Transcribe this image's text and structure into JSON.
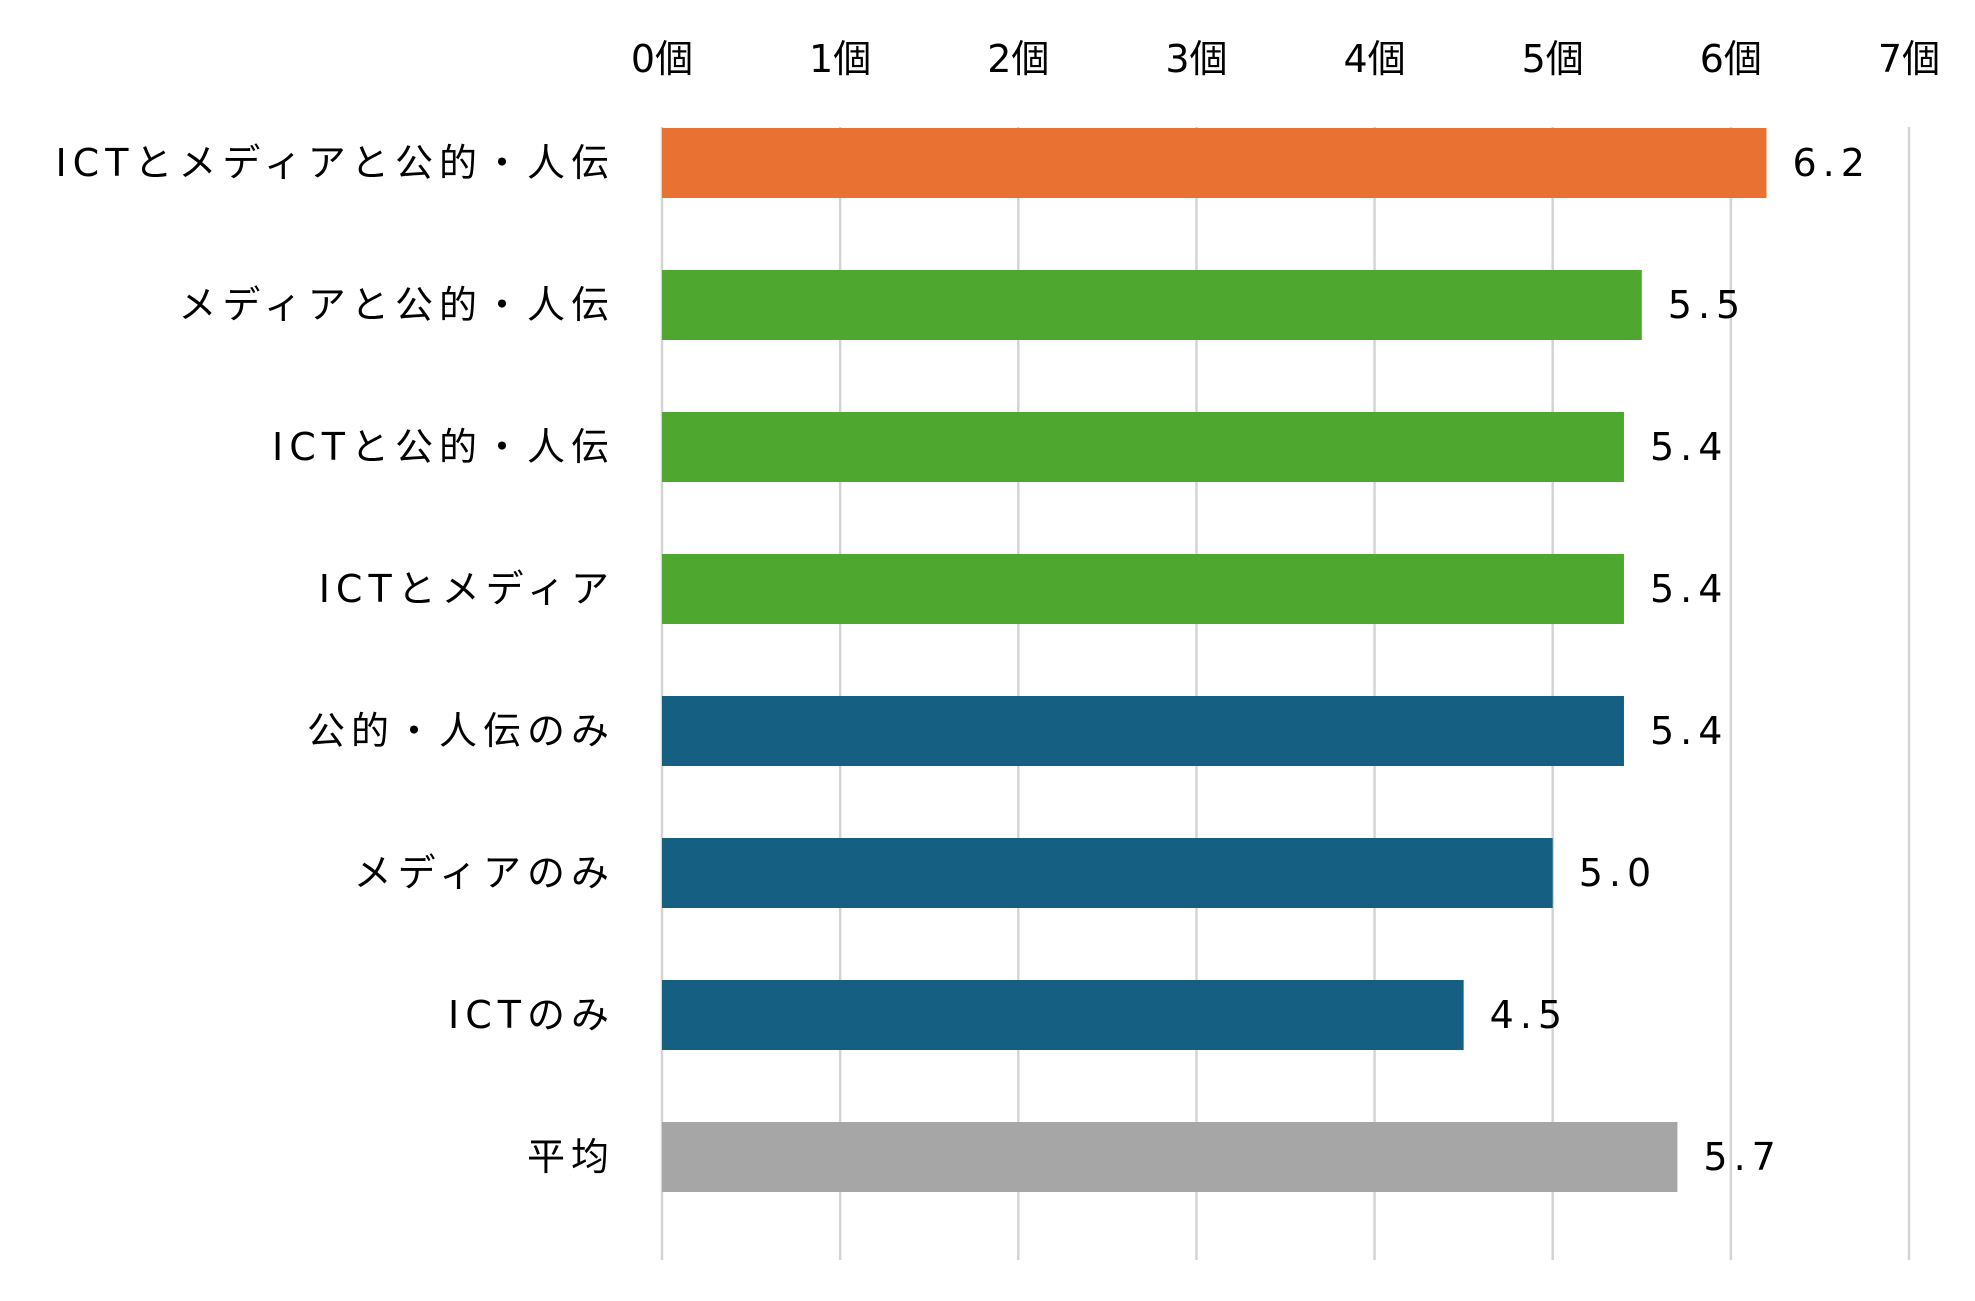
{
  "chart_data": {
    "type": "bar",
    "orientation": "horizontal",
    "categories": [
      "ICTとメディアと公的・人伝",
      "メディアと公的・人伝",
      "ICTと公的・人伝",
      "ICTとメディア",
      "公的・人伝のみ",
      "メディアのみ",
      "ICTのみ",
      "平均"
    ],
    "values": [
      6.2,
      5.5,
      5.4,
      5.4,
      5.4,
      5.0,
      4.5,
      5.7
    ],
    "data_labels": [
      "6.2",
      "5.5",
      "5.4",
      "5.4",
      "5.4",
      "5.0",
      "4.5",
      "5.7"
    ],
    "bar_colors": [
      "#E97132",
      "#4EA72E",
      "#4EA72E",
      "#4EA72E",
      "#156082",
      "#156082",
      "#156082",
      "#A6A6A6"
    ],
    "x_ticks": [
      "0個",
      "1個",
      "2個",
      "3個",
      "4個",
      "5個",
      "6個",
      "7個"
    ],
    "xlim": [
      0,
      7
    ],
    "x_axis_position": "top",
    "grid": "vertical",
    "legend": "none",
    "title": "",
    "xlabel": "",
    "ylabel": ""
  }
}
